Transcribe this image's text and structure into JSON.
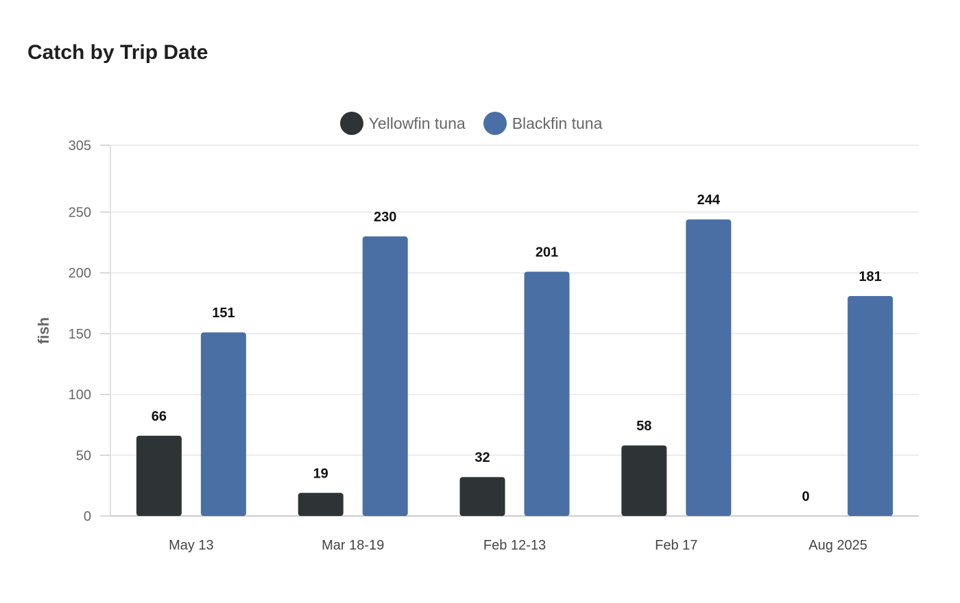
{
  "chart_data": {
    "type": "bar",
    "title": "Catch by Trip Date",
    "xlabel": "",
    "ylabel": "fish",
    "ylim": [
      0,
      305
    ],
    "yticks": [
      0,
      50,
      100,
      150,
      200,
      250,
      305
    ],
    "grid": true,
    "legend_position": "top-center",
    "categories": [
      "May 13",
      "Mar 18-19",
      "Feb 12-13",
      "Feb 17",
      "Aug 2025"
    ],
    "series": [
      {
        "name": "Yellowfin tuna",
        "color": "#2e3436",
        "values": [
          66,
          19,
          32,
          58,
          0
        ]
      },
      {
        "name": "Blackfin tuna",
        "color": "#4a6fa5",
        "values": [
          151,
          230,
          201,
          244,
          181
        ]
      }
    ]
  }
}
